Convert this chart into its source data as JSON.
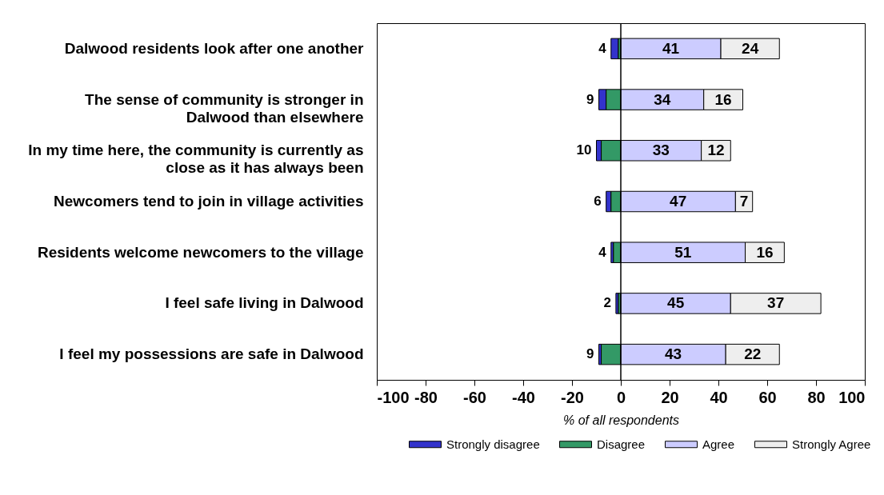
{
  "chart_data": {
    "type": "bar",
    "orientation": "horizontal",
    "categories": [
      "Dalwood residents look after one another",
      "The sense of community is stronger in Dalwood than elsewhere",
      "In my time here, the community is currently as close as it has always been",
      "Newcomers tend to join in village activities",
      "Residents welcome newcomers to the village",
      "I feel safe living in Dalwood",
      "I feel my possessions are safe in Dalwood"
    ],
    "series": [
      {
        "name": "Strongly disagree",
        "color": "#3333cc",
        "values": [
          -3,
          -3,
          -2,
          -2,
          -1,
          -1,
          -1
        ],
        "base": [
          -1,
          -6,
          -8,
          -4,
          -3,
          -1,
          -8
        ]
      },
      {
        "name": "Disagree",
        "color": "#339966",
        "values": [
          -1,
          -6,
          -8,
          -4,
          -3,
          -1,
          -8
        ],
        "base": [
          0,
          0,
          0,
          0,
          0,
          0,
          0
        ]
      },
      {
        "name": "Agree",
        "color": "#ccccff",
        "values": [
          41,
          34,
          33,
          47,
          51,
          45,
          43
        ],
        "base": [
          0,
          0,
          0,
          0,
          0,
          0,
          0
        ],
        "data_labels": true
      },
      {
        "name": "Strongly Agree",
        "color": "#eeeeee",
        "values": [
          24,
          16,
          12,
          7,
          16,
          37,
          22
        ],
        "base": [
          41,
          34,
          33,
          47,
          51,
          45,
          43
        ],
        "data_labels": true
      }
    ],
    "annotations": [
      {
        "text": "4",
        "x": -4,
        "y": "Dalwood residents look after one another"
      },
      {
        "text": "9",
        "x": -9,
        "y": "The sense of community is stronger in Dalwood than elsewhere"
      },
      {
        "text": "10",
        "x": -10,
        "y": "In my time here, the community is currently as close as it has always been"
      },
      {
        "text": "6",
        "x": -6,
        "y": "Newcomers tend to join in village activities"
      },
      {
        "text": "4",
        "x": -4,
        "y": "Residents welcome newcomers to the village"
      },
      {
        "text": "2",
        "x": -2,
        "y": "I feel safe living in Dalwood"
      },
      {
        "text": "9",
        "x": -9,
        "y": "I feel my possessions are safe in Dalwood"
      }
    ],
    "xlim": [
      -100,
      100
    ],
    "xticks": [
      -100,
      -80,
      -60,
      -40,
      -20,
      0,
      20,
      40,
      60,
      80,
      100
    ],
    "xlabel": "% of all respondents",
    "legend": "bottom",
    "grid": false,
    "ref_lines": [
      {
        "axis": "x",
        "value": 0,
        "color": "#000000"
      }
    ]
  }
}
